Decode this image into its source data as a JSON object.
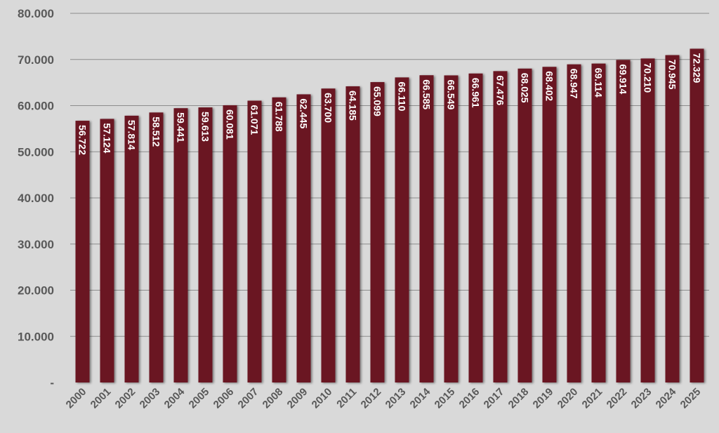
{
  "chart_data": {
    "type": "bar",
    "categories": [
      "2000",
      "2001",
      "2002",
      "2003",
      "2004",
      "2005",
      "2006",
      "2007",
      "2008",
      "2009",
      "2010",
      "2011",
      "2012",
      "2013",
      "2014",
      "2015",
      "2016",
      "2017",
      "2018",
      "2019",
      "2020",
      "2021",
      "2022",
      "2023",
      "2024",
      "2025"
    ],
    "values": [
      56722,
      57124,
      57814,
      58512,
      59441,
      59613,
      60081,
      61071,
      61788,
      62445,
      63700,
      64185,
      65099,
      66110,
      66585,
      66549,
      66961,
      67476,
      68025,
      68402,
      68947,
      69114,
      69914,
      70210,
      70945,
      72329
    ],
    "data_labels": [
      "56.722",
      "57.124",
      "57.814",
      "58.512",
      "59.441",
      "59.613",
      "60.081",
      "61.071",
      "61.788",
      "62.445",
      "63.700",
      "64.185",
      "65.099",
      "66.110",
      "66.585",
      "66.549",
      "66.961",
      "67.476",
      "68.025",
      "68.402",
      "68.947",
      "69.114",
      "69.914",
      "70.210",
      "70.945",
      "72.329"
    ],
    "y_ticks": [
      0,
      10000,
      20000,
      30000,
      40000,
      50000,
      60000,
      70000,
      80000
    ],
    "y_tick_labels": [
      "-",
      "10.000",
      "20.000",
      "30.000",
      "40.000",
      "50.000",
      "60.000",
      "70.000",
      "80.000"
    ],
    "ylim": [
      0,
      80000
    ],
    "title": "",
    "xlabel": "",
    "ylabel": "",
    "grid": true,
    "legend": "none",
    "colors": {
      "bar": "#6a1520",
      "background": "#d9d9d9",
      "grid": "#8c8c8c",
      "tick_text": "#595959",
      "label_text": "#ffffff"
    }
  }
}
